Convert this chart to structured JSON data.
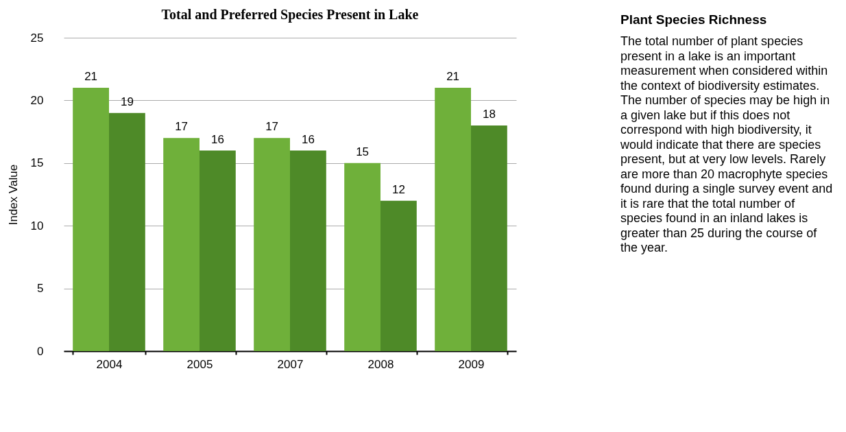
{
  "chart_data": [
    {
      "type": "bar",
      "title": "Total and Preferred Species Present in Lake",
      "ylabel": "Index Value",
      "categories": [
        "2004",
        "2005",
        "2007",
        "2008",
        "2009"
      ],
      "series": [
        {
          "color": "#6fb03a",
          "values": [
            21,
            17,
            17,
            15,
            21
          ]
        },
        {
          "color": "#4e8a28",
          "values": [
            19,
            16,
            16,
            12,
            18
          ]
        }
      ],
      "ylim": [
        0,
        25
      ],
      "yticks": [
        0,
        5,
        10,
        15,
        20,
        25
      ],
      "grid": "y",
      "data_labels": true
    },
    {
      "type": "other",
      "title": "Plant Species Richness",
      "annotations": [
        "The total number of plant species present in a lake is an important measurement when considered within the context of biodiversity estimates. The number of species may be high in a given lake but if this does not correspond with high biodiversity, it would indicate that there are species present, but at very low levels. Rarely are more than 20 macrophyte species found during a single survey event and it is rare that the total number of species found in an inland lakes is greater than 25 during the course of the year."
      ]
    }
  ]
}
